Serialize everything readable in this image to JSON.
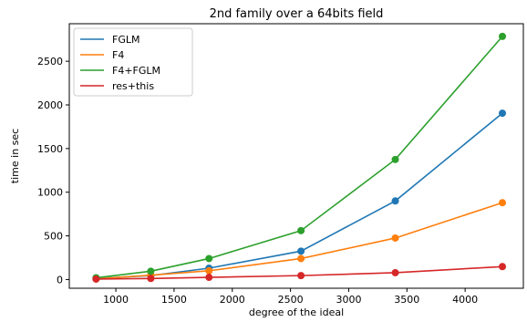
{
  "chart_data": {
    "type": "line",
    "title": "2nd family over a  64bits field",
    "xlabel": "degree of the ideal",
    "ylabel": "time in sec",
    "xlim": [
      600,
      4500
    ],
    "ylim": [
      -100,
      2930
    ],
    "xticks": [
      1000,
      1500,
      2000,
      2500,
      3000,
      3500,
      4000
    ],
    "yticks": [
      0,
      500,
      1000,
      1500,
      2000,
      2500
    ],
    "legend_position": "top-left",
    "grid": false,
    "x": [
      830,
      1300,
      1800,
      2590,
      3400,
      4320
    ],
    "series": [
      {
        "name": "FGLM",
        "color": "#1f77b4",
        "values": [
          12,
          45,
          130,
          325,
          900,
          1905
        ]
      },
      {
        "name": "F4",
        "color": "#ff7f0e",
        "values": [
          8,
          50,
          100,
          240,
          475,
          880
        ]
      },
      {
        "name": "F4+FGLM",
        "color": "#2ca02c",
        "values": [
          20,
          95,
          240,
          560,
          1375,
          2785
        ]
      },
      {
        "name": "res+this",
        "color": "#d62728",
        "values": [
          5,
          12,
          25,
          45,
          78,
          148
        ]
      }
    ]
  }
}
